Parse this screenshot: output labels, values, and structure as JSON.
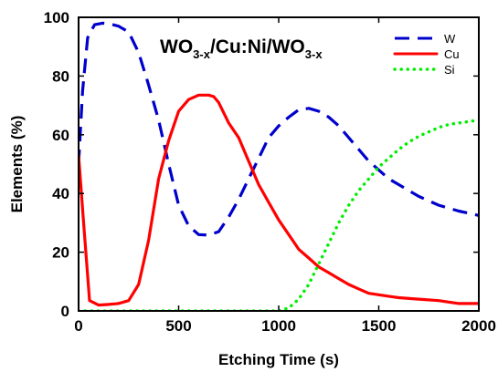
{
  "chart_data": {
    "type": "line",
    "title": "",
    "xlabel": "Etching Time (s)",
    "ylabel": "Elements (%)",
    "xlim": [
      0,
      2000
    ],
    "ylim": [
      0,
      100
    ],
    "xticks": [
      0,
      500,
      1000,
      1500,
      2000
    ],
    "yticks": [
      0,
      20,
      40,
      60,
      80,
      100
    ],
    "grid": false,
    "legend_position": "top-right",
    "annotation": {
      "parts": [
        {
          "text": "WO",
          "sub": false
        },
        {
          "text": "3-x",
          "sub": true
        },
        {
          "text": "/Cu:Ni/WO",
          "sub": false
        },
        {
          "text": "3-x",
          "sub": true
        }
      ]
    },
    "series": [
      {
        "name": "W",
        "color": "#0000cc",
        "dash": "dashed",
        "x": [
          0,
          20,
          45,
          80,
          120,
          160,
          200,
          250,
          300,
          350,
          400,
          450,
          500,
          550,
          600,
          650,
          700,
          750,
          800,
          850,
          900,
          950,
          1000,
          1050,
          1100,
          1150,
          1200,
          1250,
          1300,
          1350,
          1400,
          1450,
          1500,
          1550,
          1600,
          1650,
          1700,
          1800,
          1900,
          2000
        ],
        "y": [
          50,
          75,
          93,
          97.5,
          98,
          97.7,
          97,
          95,
          88,
          77,
          65,
          50,
          36,
          29,
          26,
          25.8,
          27,
          32,
          38,
          45,
          52,
          59,
          63,
          66,
          68.5,
          69,
          68,
          66,
          63,
          59,
          55,
          51,
          48,
          45,
          43,
          41,
          39,
          36,
          34,
          32.5
        ]
      },
      {
        "name": "Cu",
        "color": "#ff0000",
        "dash": "solid",
        "x": [
          0,
          25,
          55,
          100,
          150,
          200,
          250,
          300,
          350,
          400,
          450,
          500,
          550,
          600,
          650,
          675,
          700,
          750,
          800,
          850,
          900,
          950,
          1000,
          1050,
          1100,
          1150,
          1200,
          1250,
          1300,
          1350,
          1400,
          1450,
          1500,
          1550,
          1600,
          1700,
          1800,
          1900,
          2000
        ],
        "y": [
          53,
          30,
          3.5,
          2,
          2.2,
          2.5,
          3.5,
          9,
          24,
          45,
          58,
          68,
          72,
          73.5,
          73.5,
          73,
          71,
          64,
          59,
          51,
          43,
          37,
          31,
          26,
          21,
          18,
          15,
          13,
          11,
          9,
          7.5,
          6,
          5.5,
          5,
          4.5,
          4,
          3.5,
          2.5,
          2.5
        ]
      },
      {
        "name": "Si",
        "color": "#00ee00",
        "dash": "dotted",
        "x": [
          0,
          200,
          400,
          600,
          800,
          1000,
          1050,
          1100,
          1150,
          1200,
          1250,
          1300,
          1350,
          1400,
          1450,
          1500,
          1550,
          1600,
          1650,
          1700,
          1750,
          1800,
          1850,
          1900,
          1950,
          2000
        ],
        "y": [
          0,
          0,
          0,
          0,
          0,
          0,
          1,
          4,
          9,
          16,
          23,
          30,
          36,
          41,
          45,
          49,
          52,
          55,
          57.5,
          59.5,
          61,
          62.5,
          63.5,
          64,
          64.5,
          65
        ]
      }
    ]
  }
}
